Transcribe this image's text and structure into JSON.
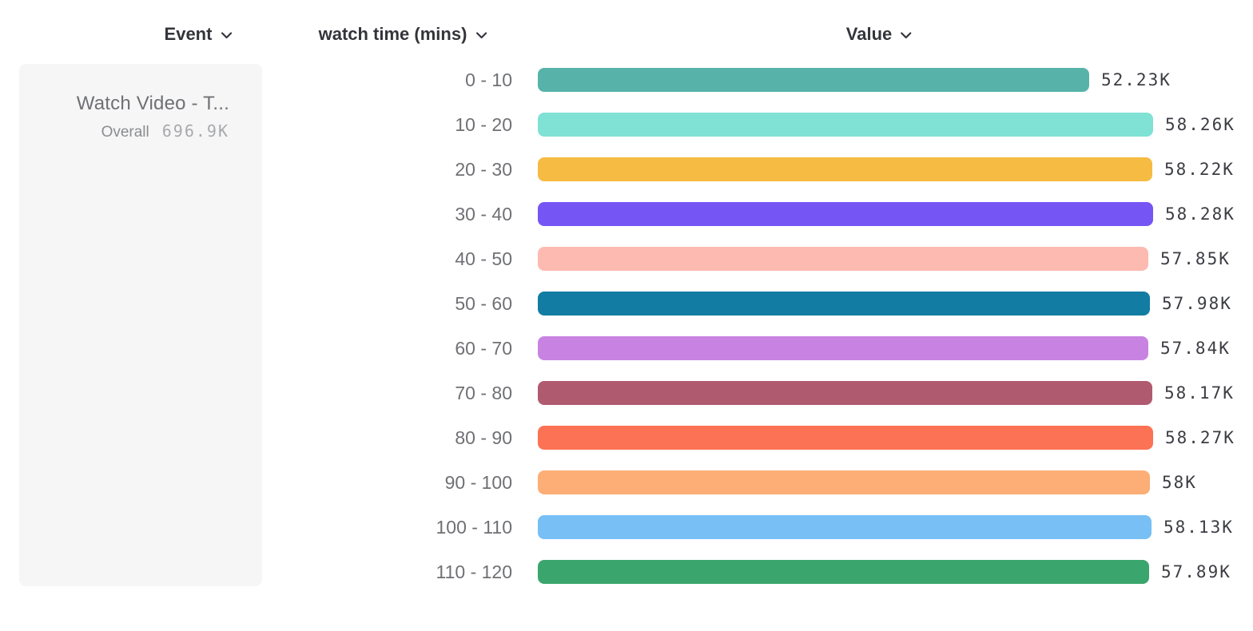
{
  "header": {
    "columns": [
      {
        "label": "Event"
      },
      {
        "label": "watch time (mins)"
      },
      {
        "label": "Value"
      }
    ]
  },
  "event_card": {
    "title": "Watch Video - T...",
    "overall_label": "Overall",
    "overall_value": "696.9K"
  },
  "chart_data": {
    "type": "bar",
    "orientation": "horizontal",
    "title": "",
    "xlabel": "Value",
    "ylabel": "watch time (mins)",
    "categories": [
      "0 - 10",
      "10 - 20",
      "20 - 30",
      "30 - 40",
      "40 - 50",
      "50 - 60",
      "60 - 70",
      "70 - 80",
      "80 - 90",
      "90 - 100",
      "100 - 110",
      "110 - 120"
    ],
    "values": [
      52230,
      58260,
      58220,
      58280,
      57850,
      57980,
      57840,
      58170,
      58270,
      58000,
      58130,
      57890
    ],
    "value_labels": [
      "52.23K",
      "58.26K",
      "58.22K",
      "58.28K",
      "57.85K",
      "57.98K",
      "57.84K",
      "58.17K",
      "58.27K",
      "58K",
      "58.13K",
      "57.89K"
    ],
    "bar_colors": [
      "#57b3aa",
      "#80e1d5",
      "#f6bb42",
      "#7655f5",
      "#fcbab1",
      "#127ca3",
      "#c883e2",
      "#b05a70",
      "#fc7254",
      "#fcae76",
      "#77bff5",
      "#3ba56e"
    ],
    "xlim": [
      0,
      58280
    ],
    "grid": false,
    "legend": false
  },
  "colors": {
    "header_text": "#34353b",
    "category_text": "#6f7074",
    "value_text": "#3c3d43",
    "card_bg": "#f6f6f6",
    "card_title": "#6f7074",
    "overall_label": "#8b8c90",
    "overall_value": "#a9aaae"
  }
}
